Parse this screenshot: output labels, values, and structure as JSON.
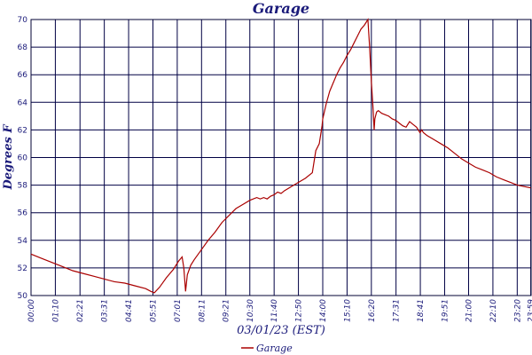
{
  "chart_data": {
    "type": "line",
    "title": "Garage",
    "xlabel": "03/01/23 (EST)",
    "ylabel": "Degrees F",
    "ylim": [
      50,
      70
    ],
    "yticks": [
      50,
      52,
      54,
      56,
      58,
      60,
      62,
      64,
      66,
      68,
      70
    ],
    "xlim": [
      0,
      1440
    ],
    "xticks": [
      {
        "label": "00:00",
        "minute": 0
      },
      {
        "label": "01:10",
        "minute": 70
      },
      {
        "label": "02:21",
        "minute": 141
      },
      {
        "label": "03:31",
        "minute": 211
      },
      {
        "label": "04:41",
        "minute": 281
      },
      {
        "label": "05:51",
        "minute": 351
      },
      {
        "label": "07:01",
        "minute": 421
      },
      {
        "label": "08:11",
        "minute": 491
      },
      {
        "label": "09:21",
        "minute": 561
      },
      {
        "label": "10:30",
        "minute": 630
      },
      {
        "label": "11:40",
        "minute": 700
      },
      {
        "label": "12:50",
        "minute": 770
      },
      {
        "label": "14:00",
        "minute": 840
      },
      {
        "label": "15:10",
        "minute": 910
      },
      {
        "label": "16:20",
        "minute": 980
      },
      {
        "label": "17:31",
        "minute": 1051
      },
      {
        "label": "18:41",
        "minute": 1121
      },
      {
        "label": "19:51",
        "minute": 1191
      },
      {
        "label": "21:00",
        "minute": 1260
      },
      {
        "label": "22:10",
        "minute": 1330
      },
      {
        "label": "23:20",
        "minute": 1400
      },
      {
        "label": "23:59",
        "minute": 1439
      }
    ],
    "grid": true,
    "legend_position": "bottom-center",
    "series": [
      {
        "name": "Garage",
        "color": "#aa0000",
        "x": [
          0,
          30,
          60,
          90,
          120,
          150,
          180,
          210,
          240,
          270,
          300,
          330,
          345,
          355,
          370,
          390,
          410,
          425,
          435,
          440,
          445,
          450,
          460,
          470,
          490,
          510,
          530,
          550,
          570,
          590,
          610,
          630,
          650,
          660,
          670,
          680,
          690,
          700,
          710,
          720,
          730,
          750,
          770,
          790,
          810,
          820,
          830,
          835,
          838,
          840,
          850,
          860,
          870,
          880,
          890,
          900,
          910,
          920,
          930,
          940,
          950,
          960,
          970,
          975,
          980,
          985,
          988,
          990,
          995,
          1000,
          1005,
          1010,
          1020,
          1030,
          1040,
          1050,
          1060,
          1070,
          1080,
          1090,
          1100,
          1110,
          1120,
          1125,
          1130,
          1140,
          1160,
          1180,
          1200,
          1220,
          1240,
          1260,
          1280,
          1300,
          1320,
          1340,
          1360,
          1380,
          1400,
          1420,
          1439
        ],
        "values": [
          53.0,
          52.7,
          52.4,
          52.1,
          51.8,
          51.6,
          51.4,
          51.2,
          51.0,
          50.9,
          50.7,
          50.5,
          50.3,
          50.2,
          50.6,
          51.3,
          51.9,
          52.5,
          52.8,
          52.0,
          50.3,
          51.5,
          52.2,
          52.6,
          53.3,
          54.0,
          54.6,
          55.3,
          55.8,
          56.3,
          56.6,
          56.9,
          57.1,
          57.0,
          57.1,
          57.0,
          57.2,
          57.3,
          57.5,
          57.4,
          57.6,
          57.9,
          58.2,
          58.5,
          58.9,
          60.5,
          61.0,
          61.8,
          62.3,
          62.8,
          63.9,
          64.8,
          65.4,
          66.0,
          66.5,
          66.9,
          67.4,
          67.8,
          68.3,
          68.8,
          69.3,
          69.6,
          70.0,
          68.0,
          65.5,
          63.5,
          62.0,
          62.8,
          63.3,
          63.4,
          63.3,
          63.2,
          63.1,
          63.0,
          62.8,
          62.7,
          62.5,
          62.3,
          62.2,
          62.6,
          62.4,
          62.2,
          61.8,
          62.0,
          61.8,
          61.6,
          61.3,
          61.0,
          60.7,
          60.3,
          59.9,
          59.6,
          59.3,
          59.1,
          58.9,
          58.6,
          58.4,
          58.2,
          58.0,
          57.9,
          57.8
        ]
      }
    ]
  }
}
